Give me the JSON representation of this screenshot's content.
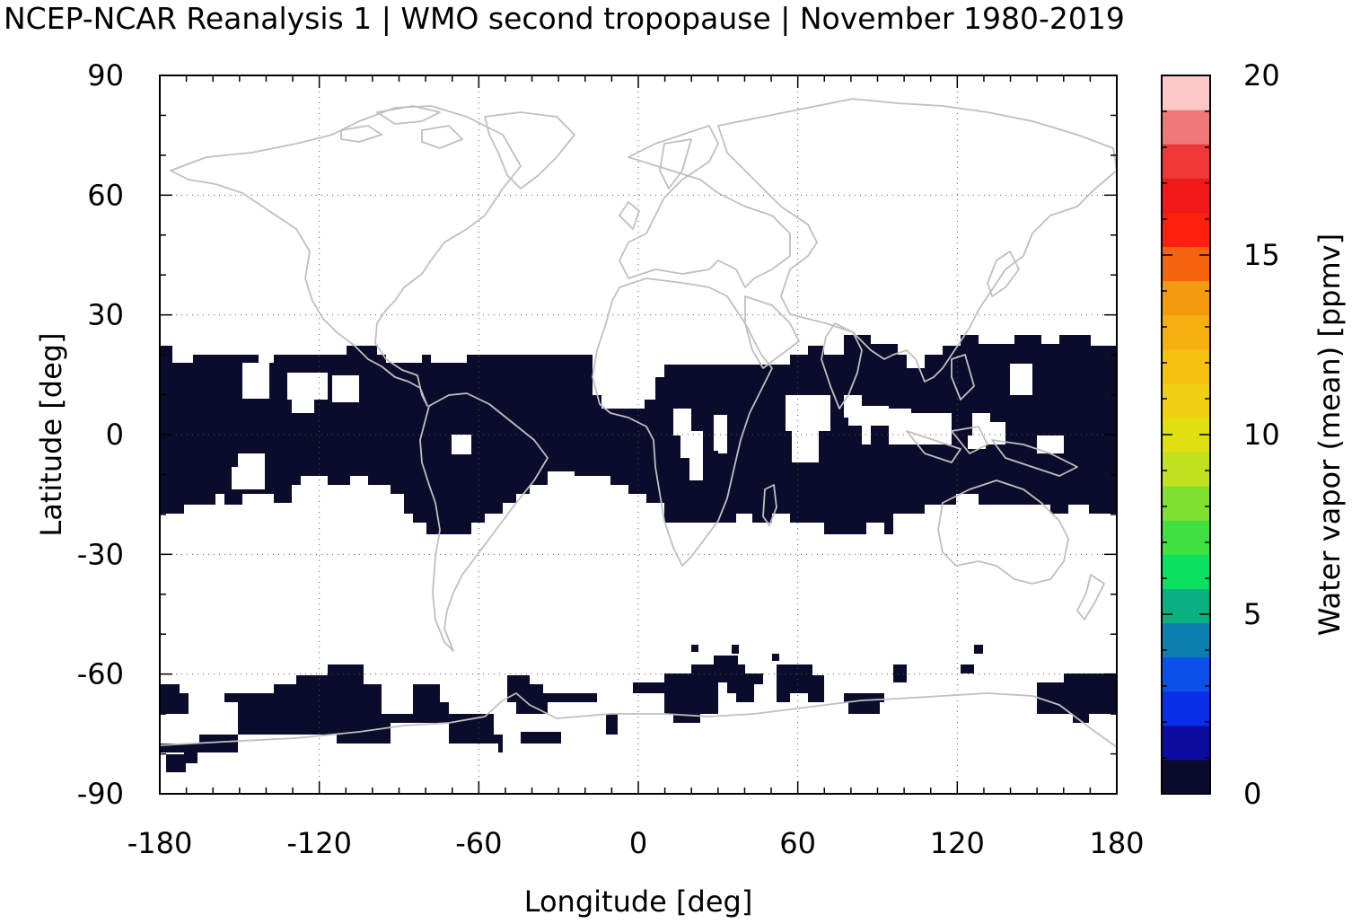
{
  "title": "NCEP-NCAR Reanalysis 1 | WMO second tropopause | November 1980-2019",
  "map": {
    "xlabel": "Longitude [deg]",
    "ylabel": "Latitude [deg]",
    "xlim": [
      -180,
      180
    ],
    "ylim": [
      -90,
      90
    ],
    "x_ticks": [
      "-180",
      "-120",
      "-60",
      "0",
      "60",
      "120",
      "180"
    ],
    "y_ticks": [
      "90",
      "60",
      "30",
      "0",
      "-30",
      "-60",
      "-90"
    ],
    "grid": "dotted",
    "land_color": "#bfbfbf",
    "data_color": "#0b0b2b",
    "regions": [
      {
        "name": "tropical-band",
        "lon": [
          -180,
          180
        ],
        "lat": [
          -20,
          22
        ],
        "value": 0.5
      },
      {
        "name": "southern-high-latitude-band",
        "lon": [
          -180,
          180
        ],
        "lat": [
          -80,
          -58
        ],
        "value": 0.5
      }
    ]
  },
  "colorbar": {
    "label": "Water vapor (mean) [ppmv]",
    "ticks": [
      "0",
      "5",
      "10",
      "15",
      "20"
    ],
    "range": [
      0,
      20
    ],
    "colors": [
      "#0b0b2b",
      "#0b0ba0",
      "#0b2ee8",
      "#0b50e8",
      "#0b80b0",
      "#0bb080",
      "#0be060",
      "#40e040",
      "#80e030",
      "#c0e020",
      "#e0e010",
      "#f0d010",
      "#f5c010",
      "#f5b010",
      "#f59a10",
      "#f56510",
      "#ff2010",
      "#f01818",
      "#f03838",
      "#f07878",
      "#ffc8c8"
    ]
  }
}
